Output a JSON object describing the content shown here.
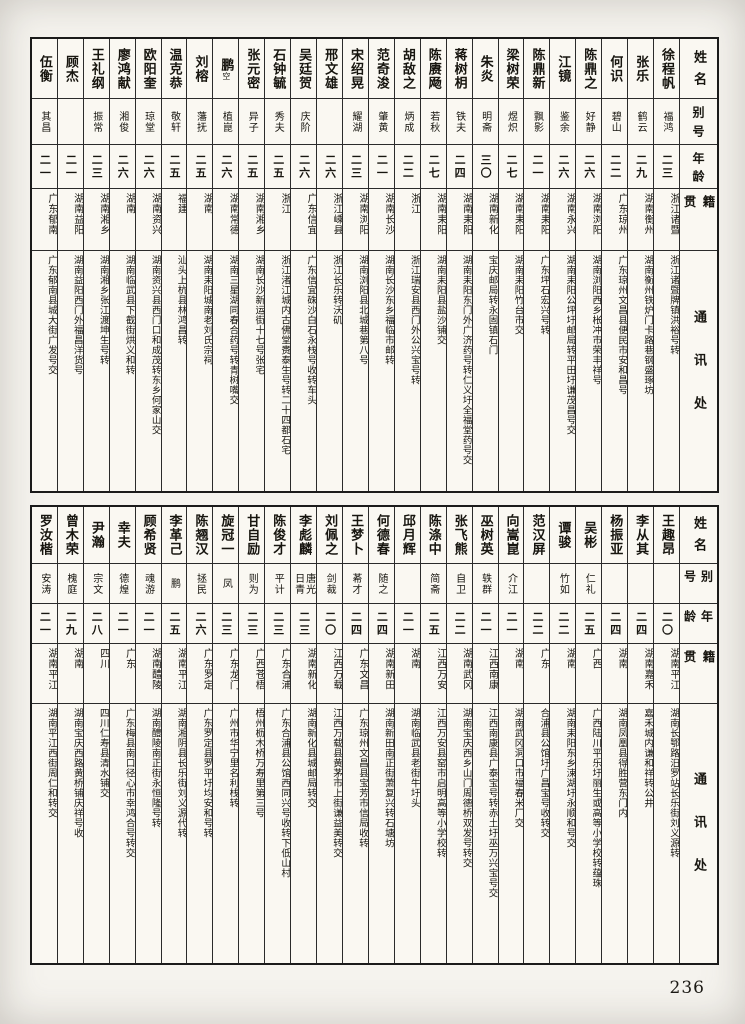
{
  "page_number": "236",
  "row_headers": [
    "姓名",
    "别号",
    "年龄",
    "籍贯",
    "通讯处"
  ],
  "tables": [
    {
      "persons": [
        {
          "name": "徐程帆",
          "alias": "福鸿",
          "age": "二三",
          "origin": "浙江诸暨",
          "address": "浙江诸暨牌镇洪裕号转"
        },
        {
          "name": "张乐",
          "alias": "鹤云",
          "age": "二九",
          "origin": "湖南衡州",
          "address": "湖南衡州铁炉门卡路巷钢盛琢坊"
        },
        {
          "name": "何识",
          "alias": "碧山",
          "age": "二二",
          "origin": "广东琼州",
          "address": "广东琼州文昌县便民市安和昌号"
        },
        {
          "name": "陈鼎之",
          "alias": "好静",
          "age": "二六",
          "origin": "湖南浏阳",
          "address": "湖南浏阳西乡枨冲市荣丰祥号"
        },
        {
          "name": "江镜",
          "alias": "鉴余",
          "age": "二六",
          "origin": "湖南永兴",
          "address": "湖南耒阳公坪圩邮局转平田圩谦茂昌号交"
        },
        {
          "name": "陈鼎新",
          "alias": "飘影",
          "age": "二一",
          "origin": "湖南耒阳",
          "address": "广东坪石宏兴号转"
        },
        {
          "name": "梁树荣",
          "alias": "煜炽",
          "age": "二七",
          "origin": "湖南耒阳",
          "address": "湖南耒阳竹台市交"
        },
        {
          "name": "朱炎",
          "alias": "明斋",
          "age": "三〇",
          "origin": "湖南新化",
          "address": "宝庆邮局转永固镇石门"
        },
        {
          "name": "蒋树枂",
          "alias": "铁夫",
          "age": "二四",
          "origin": "湖南耒阳",
          "address": "湖南耒阳东门外广济药号转仁义圩全福堂药号交"
        },
        {
          "name": "陈赓飏",
          "alias": "若秋",
          "age": "二七",
          "origin": "湖南耒阳",
          "address": "湖南耒阳县盐沙铺交"
        },
        {
          "name": "胡敌之",
          "alias": "炳成",
          "age": "二二",
          "origin": "浙江",
          "address": "浙江瑞安县西门外公兴宝号转"
        },
        {
          "name": "范奇浚",
          "alias": "肇黄",
          "age": "二一",
          "origin": "湖南长沙",
          "address": "湖南长沙东乡福临市邮转"
        },
        {
          "name": "宋绍晃",
          "alias": "耀湖",
          "age": "二三",
          "origin": "湖南浏阳",
          "address": "湖南浏阳县北城巷第八号"
        },
        {
          "name": "邢文雄",
          "alias": "",
          "age": "二六",
          "origin": "浙江嵊县",
          "address": "浙江长乐转沃矶"
        },
        {
          "name": "吴廷贺",
          "alias": "庆阶",
          "age": "二六",
          "origin": "广东信宜",
          "address": "广东信宜硃沙白石永栈号收转车头"
        },
        {
          "name": "石钟毓",
          "alias": "秀夫",
          "age": "二五",
          "origin": "浙江",
          "address": "浙江渚江城内古佛堂赉泰生号转二十四都石宅"
        },
        {
          "name": "张元密",
          "alias": "异子",
          "age": "二五",
          "origin": "湖南湘乡",
          "address": "湖南长沙新运街十七号张宅"
        },
        {
          "name": "鹏",
          "name_note": "空",
          "alias": "植崑",
          "age": "二六",
          "origin": "湖南常德",
          "address": "湖南三星湖同春合药号转青树嘴交"
        },
        {
          "name": "刘榕",
          "alias": "藩抚",
          "age": "二五",
          "origin": "湖南",
          "address": "湖南耒阳城南老刘氏宗祠"
        },
        {
          "name": "温克恭",
          "alias": "敬轩",
          "age": "二五",
          "origin": "福建",
          "address": "汕头上杭县林鸿昌转"
        },
        {
          "name": "欧阳奎",
          "alias": "琼堂",
          "age": "二六",
          "origin": "湖南资兴",
          "address": "湖南资兴县西门口和成茂转东乡何家山交"
        },
        {
          "name": "廖鸿献",
          "alias": "湘俊",
          "age": "二六",
          "origin": "湖南",
          "address": "湖南临武县下截街烘义和转"
        },
        {
          "name": "王礼纲",
          "alias": "振常",
          "age": "二三",
          "origin": "湖南湘乡",
          "address": "湖南湘乡张江渡坤生号转"
        },
        {
          "name": "顾杰",
          "alias": "",
          "age": "二一",
          "origin": "湖南益阳",
          "address": "湖南益阳西门外福昌洋货号"
        },
        {
          "name": "伍衡",
          "alias": "其昌",
          "age": "二一",
          "origin": "广东郁南",
          "address": "广东郁南县城大街广发号交"
        }
      ]
    },
    {
      "persons": [
        {
          "name": "王趣昂",
          "alias": "",
          "age": "二〇",
          "origin": "湖南平江",
          "address": "湖南长鄂路汨罗站长乐街刘义源转"
        },
        {
          "name": "李从其",
          "alias": "",
          "age": "二四",
          "origin": "湖南嘉禾",
          "address": "嘉禾城内谦和祥转公井"
        },
        {
          "name": "杨振亚",
          "alias": "",
          "age": "二四",
          "origin": "湖南",
          "address": "湖南凤凰县得胜营东门内"
        },
        {
          "name": "吴彬",
          "alias": "仁礼",
          "age": "二五",
          "origin": "广西",
          "address": "广西陆川平乐圩丽生或高等小学校转蕴珠"
        },
        {
          "name": "谭骏",
          "alias": "竹如",
          "age": "二二",
          "origin": "湖南",
          "address": "湖南耒阳东乡涑湖圩永顺和号交"
        },
        {
          "name": "范汉屏",
          "alias": "",
          "age": "二二",
          "origin": "广东",
          "address": "合浦县公馆圩广昌宝号收转交"
        },
        {
          "name": "向嵩崑",
          "alias": "介江",
          "age": "二一",
          "origin": "湖南",
          "address": "湖南武冈洞口市福春米厂交"
        },
        {
          "name": "巫树英",
          "alias": "轶群",
          "age": "二一",
          "origin": "江西南康",
          "address": "江西南康县广泰宝号转赤土圩巫万兴宝号交"
        },
        {
          "name": "张飞熊",
          "alias": "自卫",
          "age": "二二",
          "origin": "湖南武冈",
          "address": "湖南宝庆西乡山门周德桥双发号转交"
        },
        {
          "name": "陈涤中",
          "alias": "简斋",
          "age": "二五",
          "origin": "江西万安",
          "address": "江西万安县窑市启明高等小学校转"
        },
        {
          "name": "邱月辉",
          "alias": "",
          "age": "二一",
          "origin": "湖南",
          "address": "湖南临武县老街牛圩头"
        },
        {
          "name": "何德春",
          "alias": "随之",
          "age": "二四",
          "origin": "湖南新田",
          "address": "湖南新田南正街萧复兴转石塘坊"
        },
        {
          "name": "王梦卜",
          "alias": "莃才",
          "age": "二四",
          "origin": "广东文昌",
          "address": "广东琼州文昌县宝芳市信局收转"
        },
        {
          "name": "刘佩之",
          "alias": "剑裁",
          "age": "二〇",
          "origin": "江西万载",
          "address": "江西万载县黄茅市上街谦益美转交"
        },
        {
          "name": "李彪麟",
          "alias": "唐光\n日青",
          "age": "二三",
          "origin": "湖南新化",
          "address": "湖南新化县城邮局转交"
        },
        {
          "name": "陈俊才",
          "alias": "平计",
          "age": "二三",
          "origin": "广东合浦",
          "address": "广东合浦县公馆西同兴号收转下低山村"
        },
        {
          "name": "甘自励",
          "alias": "则为",
          "age": "二三",
          "origin": "广西苍梧",
          "address": "梧州枥木桥万寿里第三号"
        },
        {
          "name": "旋冠一",
          "alias": "凤",
          "age": "二三",
          "origin": "广东龙门",
          "address": "广州市华宁里名利栈转"
        },
        {
          "name": "陈翘汉",
          "alias": "拯民",
          "age": "二六",
          "origin": "广东罗定",
          "address": "广东罗定县罗平圩均安和号转"
        },
        {
          "name": "李革己",
          "alias": "鹏",
          "age": "二五",
          "origin": "湖南平江",
          "address": "湖南湘阴县长乐街刘义源代转"
        },
        {
          "name": "顾希贤",
          "alias": "魂游",
          "age": "二一",
          "origin": "湖南醴陵",
          "address": "湖南醴陵南正街永恒隆号转"
        },
        {
          "name": "幸夫",
          "alias": "德煌",
          "age": "二一",
          "origin": "广东",
          "address": "广东梅县南口径心市幸鸿合号转交"
        },
        {
          "name": "尹瀚",
          "alias": "宗文",
          "age": "二八",
          "origin": "四川",
          "address": "四川仁寿县清水铺交"
        },
        {
          "name": "曾木荣",
          "alias": "槐庭",
          "age": "二九",
          "origin": "湖南",
          "address": "湖南宝庆西路黄桥铺庆祥号收"
        },
        {
          "name": "罗汝楷",
          "alias": "安涛",
          "age": "二一",
          "origin": "湖南平江",
          "address": "湖南平江西街周仁和转交"
        }
      ]
    }
  ]
}
